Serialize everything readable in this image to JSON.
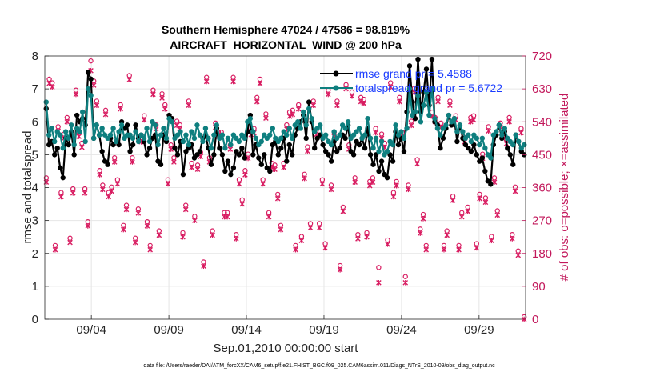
{
  "chart_data": {
    "type": "line",
    "title_line1": "Southern Hemisphere 47024 / 47586 = 98.819%",
    "title_line2": "AIRCRAFT_HORIZONTAL_WIND @ 200 hPa",
    "xlabel": "Sep.01,2010 00:00:00 start",
    "ylabel_left": "rmse and totalspread",
    "ylabel_right": "# of obs: o=possible; ×=assimilated",
    "x_range_days": [
      1.0,
      32.0
    ],
    "x_ticks": [
      {
        "day": 4,
        "label": "09/04"
      },
      {
        "day": 9,
        "label": "09/09"
      },
      {
        "day": 14,
        "label": "09/14"
      },
      {
        "day": 19,
        "label": "09/19"
      },
      {
        "day": 24,
        "label": "09/24"
      },
      {
        "day": 29,
        "label": "09/29"
      }
    ],
    "ylim_left": [
      0,
      8
    ],
    "y_ticks_left": [
      "0",
      "1",
      "2",
      "3",
      "4",
      "5",
      "6",
      "7",
      "8"
    ],
    "ylim_right": [
      0,
      720
    ],
    "y_ticks_right": [
      "0",
      "90",
      "180",
      "270",
      "360",
      "450",
      "540",
      "630",
      "720"
    ],
    "grid": true,
    "legend_position": "top-right",
    "colors": {
      "rmse": "#000000",
      "spread": "#0e7f7f",
      "obs": "#d81b60",
      "legend_text": "#1a3cff",
      "right_axis": "#c2185b"
    },
    "series": [
      {
        "name": "rmse grand pr = 5.4588",
        "axis": "left",
        "values": [
          6.4,
          5.3,
          5.4,
          5.0,
          5.2,
          4.6,
          4.3,
          5.5,
          5.3,
          5.7,
          5.0,
          6.2,
          6.0,
          6.1,
          5.9,
          7.5,
          7.3,
          5.5,
          5.9,
          5.6,
          5.1,
          4.8,
          4.7,
          5.5,
          5.3,
          5.4,
          5.3,
          6.0,
          5.8,
          5.9,
          5.1,
          5.3,
          5.9,
          5.5,
          5.6,
          5.4,
          5.0,
          5.2,
          5.5,
          5.6,
          4.8,
          4.7,
          5.6,
          5.4,
          6.2,
          6.1,
          5.2,
          5.0,
          5.4,
          4.4,
          5.1,
          5.2,
          5.3,
          4.9,
          5.0,
          5.1,
          5.5,
          5.6,
          5.2,
          4.7,
          5.0,
          5.8,
          5.2,
          5.0,
          4.5,
          4.8,
          4.4,
          4.6,
          5.1,
          5.0,
          5.2,
          4.9,
          5.7,
          6.2,
          5.0,
          5.3,
          4.9,
          4.7,
          5.0,
          4.6,
          4.5,
          5.3,
          5.4,
          5.0,
          5.2,
          5.5,
          4.8,
          5.3,
          5.0,
          5.6,
          5.8,
          6.0,
          6.2,
          5.5,
          6.6,
          6.0,
          5.2,
          5.5,
          5.6,
          5.3,
          5.1,
          5.0,
          4.8,
          5.4,
          5.1,
          5.2,
          5.6,
          5.5,
          5.9,
          5.1,
          5.0,
          5.4,
          5.3,
          5.5,
          5.2,
          5.8,
          5.0,
          4.7,
          5.0,
          4.5,
          4.8,
          4.4,
          4.3,
          5.0,
          4.8,
          5.7,
          5.3,
          5.5,
          5.1,
          6.3,
          7.7,
          6.6,
          6.1,
          7.9,
          6.3,
          6.9,
          7.6,
          6.5,
          7.9,
          6.0,
          5.9,
          5.2,
          5.5,
          5.8,
          6.2,
          5.9,
          6.1,
          5.4,
          5.9,
          5.5,
          5.3,
          5.2,
          5.1,
          5.3,
          5.0,
          4.8,
          4.9,
          4.5,
          4.2,
          4.1,
          5.3,
          5.6,
          5.9,
          5.5,
          5.7,
          5.2,
          5.0,
          4.7,
          5.6,
          5.4,
          5.1,
          5.0
        ]
      },
      {
        "name": "totalspread grand pr = 5.6722",
        "axis": "left",
        "values": [
          6.6,
          5.6,
          5.8,
          5.4,
          5.7,
          5.6,
          5.2,
          5.7,
          5.5,
          5.9,
          5.3,
          5.8,
          5.7,
          6.3,
          5.4,
          7.0,
          6.8,
          5.5,
          5.9,
          5.6,
          5.8,
          5.6,
          5.5,
          5.6,
          5.8,
          5.4,
          5.7,
          5.9,
          5.5,
          5.6,
          5.6,
          5.5,
          5.7,
          5.4,
          5.6,
          5.5,
          5.8,
          5.4,
          6.0,
          5.9,
          5.3,
          5.6,
          5.8,
          5.5,
          6.1,
          6.0,
          5.5,
          5.6,
          5.7,
          5.4,
          5.6,
          5.3,
          5.7,
          5.5,
          5.9,
          5.6,
          5.4,
          5.8,
          5.5,
          5.2,
          5.6,
          5.9,
          5.5,
          5.6,
          5.2,
          5.5,
          5.3,
          5.6,
          5.5,
          5.4,
          5.6,
          5.5,
          6.0,
          6.1,
          5.7,
          5.5,
          5.3,
          5.4,
          5.6,
          5.5,
          5.6,
          5.8,
          5.5,
          5.4,
          5.5,
          5.7,
          5.6,
          5.8,
          5.5,
          5.9,
          6.0,
          5.8,
          6.3,
          5.9,
          6.4,
          6.1,
          5.7,
          5.8,
          5.9,
          5.5,
          5.6,
          5.4,
          5.3,
          5.7,
          5.5,
          5.6,
          5.9,
          5.8,
          6.0,
          5.5,
          5.6,
          5.7,
          5.8,
          5.5,
          5.6,
          6.1,
          5.5,
          5.2,
          5.5,
          5.1,
          5.4,
          5.0,
          5.1,
          5.4,
          5.3,
          5.9,
          5.6,
          5.7,
          5.5,
          5.8,
          7.0,
          6.2,
          6.3,
          6.8,
          6.0,
          6.5,
          6.9,
          6.2,
          7.0,
          6.1,
          5.8,
          5.6,
          5.8,
          5.9,
          6.2,
          6.0,
          6.1,
          5.7,
          5.9,
          5.7,
          5.5,
          5.6,
          5.4,
          5.6,
          5.5,
          5.3,
          5.5,
          5.2,
          5.0,
          4.9,
          5.6,
          5.7,
          5.9,
          5.6,
          5.8,
          5.5,
          5.4,
          5.3,
          5.6,
          5.4,
          5.2,
          5.3
        ]
      },
      {
        "name": "obs possible",
        "axis": "right",
        "marker": "o",
        "values": [
          380,
          650,
          640,
          195,
          520,
          340,
          500,
          545,
          215,
          350,
          620,
          505,
          475,
          350,
          260,
          700,
          645,
          590,
          400,
          360,
          565,
          340,
          355,
          435,
          375,
          580,
          250,
          305,
          660,
          435,
          215,
          295,
          490,
          550,
          260,
          195,
          620,
          525,
          235,
          610,
          580,
          375,
          470,
          435,
          535,
          525,
          230,
          305,
          590,
          420,
          275,
          415,
          450,
          150,
          655,
          435,
          235,
          530,
          505,
          505,
          285,
          285,
          470,
          655,
          225,
          375,
          320,
          400,
          445,
          510,
          515,
          600,
          650,
          375,
          555,
          285,
          420,
          415,
          335,
          250,
          420,
          525,
          560,
          565,
          195,
          580,
          220,
          390,
          465,
          255,
          590,
          510,
          255,
          375,
          200,
          620,
          360,
          505,
          590,
          140,
          300,
          635,
          470,
          615,
          380,
          225,
          600,
          595,
          230,
          370,
          380,
          515,
          135,
          500,
          475,
          210,
          640,
          340,
          370,
          600,
          505,
          110,
          360,
          535,
          625,
          430,
          240,
          280,
          195,
          595,
          560,
          545,
          600,
          530,
          195,
          235,
          590,
          330,
          550,
          195,
          285,
          490,
          300,
          545,
          550,
          200,
          335,
          445,
          325,
          520,
          220,
          380,
          290,
          530,
          505,
          485,
          545,
          225,
          355,
          180,
          515,
          0
        ]
      },
      {
        "name": "obs assimilated",
        "axis": "right",
        "marker": "x",
        "values": [
          375,
          645,
          635,
          190,
          515,
          335,
          495,
          540,
          210,
          345,
          615,
          500,
          470,
          345,
          255,
          680,
          640,
          585,
          395,
          355,
          560,
          335,
          350,
          430,
          370,
          575,
          245,
          300,
          655,
          430,
          210,
          290,
          485,
          545,
          255,
          190,
          615,
          520,
          230,
          605,
          575,
          370,
          465,
          430,
          530,
          520,
          225,
          300,
          585,
          415,
          270,
          410,
          445,
          145,
          650,
          430,
          230,
          525,
          500,
          500,
          280,
          280,
          465,
          650,
          220,
          370,
          315,
          395,
          440,
          505,
          510,
          595,
          645,
          370,
          550,
          280,
          415,
          410,
          330,
          245,
          415,
          520,
          555,
          560,
          190,
          575,
          215,
          385,
          460,
          250,
          585,
          505,
          250,
          370,
          195,
          615,
          355,
          500,
          585,
          135,
          295,
          630,
          465,
          610,
          375,
          220,
          595,
          590,
          225,
          365,
          375,
          510,
          100,
          495,
          470,
          205,
          635,
          335,
          365,
          595,
          500,
          100,
          355,
          530,
          620,
          425,
          235,
          275,
          190,
          590,
          555,
          540,
          595,
          525,
          190,
          230,
          585,
          325,
          545,
          190,
          280,
          485,
          295,
          540,
          545,
          195,
          330,
          440,
          320,
          515,
          215,
          375,
          285,
          525,
          500,
          480,
          540,
          220,
          350,
          175,
          510,
          0
        ]
      }
    ]
  },
  "footer_text": "data file: /Users/raeder/DAI/ATM_forcXX/CAM6_setup/f.e21.FHIST_BGC.f09_025.CAM6assim.011/Diags_NTrS_2010-09/obs_diag_output.nc"
}
